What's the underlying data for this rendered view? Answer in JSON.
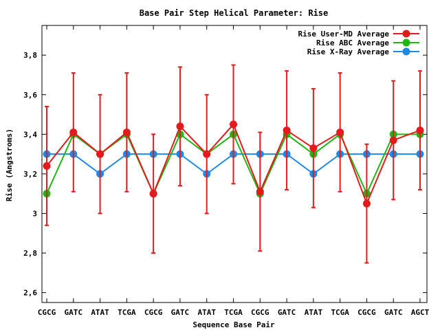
{
  "chart_data": {
    "type": "line",
    "title": "Base Pair Step Helical Parameter: Rise",
    "xlabel": "Sequence Base Pair",
    "ylabel": "Rise (Angstroms)",
    "categories": [
      "CGCG",
      "GATC",
      "ATAT",
      "TCGA",
      "CGCG",
      "GATC",
      "ATAT",
      "TCGA",
      "CGCG",
      "GATC",
      "ATAT",
      "TCGA",
      "CGCG",
      "GATC",
      "AGCT"
    ],
    "ylim": [
      2.55,
      3.95
    ],
    "yticks": [
      2.6,
      2.8,
      3,
      3.2,
      3.4,
      3.6,
      3.8
    ],
    "ytick_labels": [
      "2,6",
      "2,8",
      "3",
      "3,2",
      "3,4",
      "3,6",
      "3,8"
    ],
    "grid": false,
    "legend_position": "top-right",
    "series": [
      {
        "name": "Rise User-MD Average",
        "color": "#e41a1c",
        "values": [
          3.24,
          3.41,
          3.3,
          3.41,
          3.1,
          3.44,
          3.3,
          3.45,
          3.11,
          3.42,
          3.33,
          3.41,
          3.05,
          3.37,
          3.42
        ],
        "error": [
          0.3,
          0.3,
          0.3,
          0.3,
          0.3,
          0.3,
          0.3,
          0.3,
          0.3,
          0.3,
          0.3,
          0.3,
          0.3,
          0.3,
          0.3
        ]
      },
      {
        "name": "Rise ABC Average",
        "color": "#1fb812",
        "values": [
          3.1,
          3.4,
          3.3,
          3.4,
          3.1,
          3.4,
          3.3,
          3.4,
          3.1,
          3.4,
          3.3,
          3.4,
          3.1,
          3.4,
          3.4
        ]
      },
      {
        "name": "Rise X-Ray Average",
        "color": "#1e88e5",
        "values": [
          3.3,
          3.3,
          3.2,
          3.3,
          3.3,
          3.3,
          3.2,
          3.3,
          3.3,
          3.3,
          3.2,
          3.3,
          3.3,
          3.3,
          3.3
        ]
      }
    ]
  }
}
